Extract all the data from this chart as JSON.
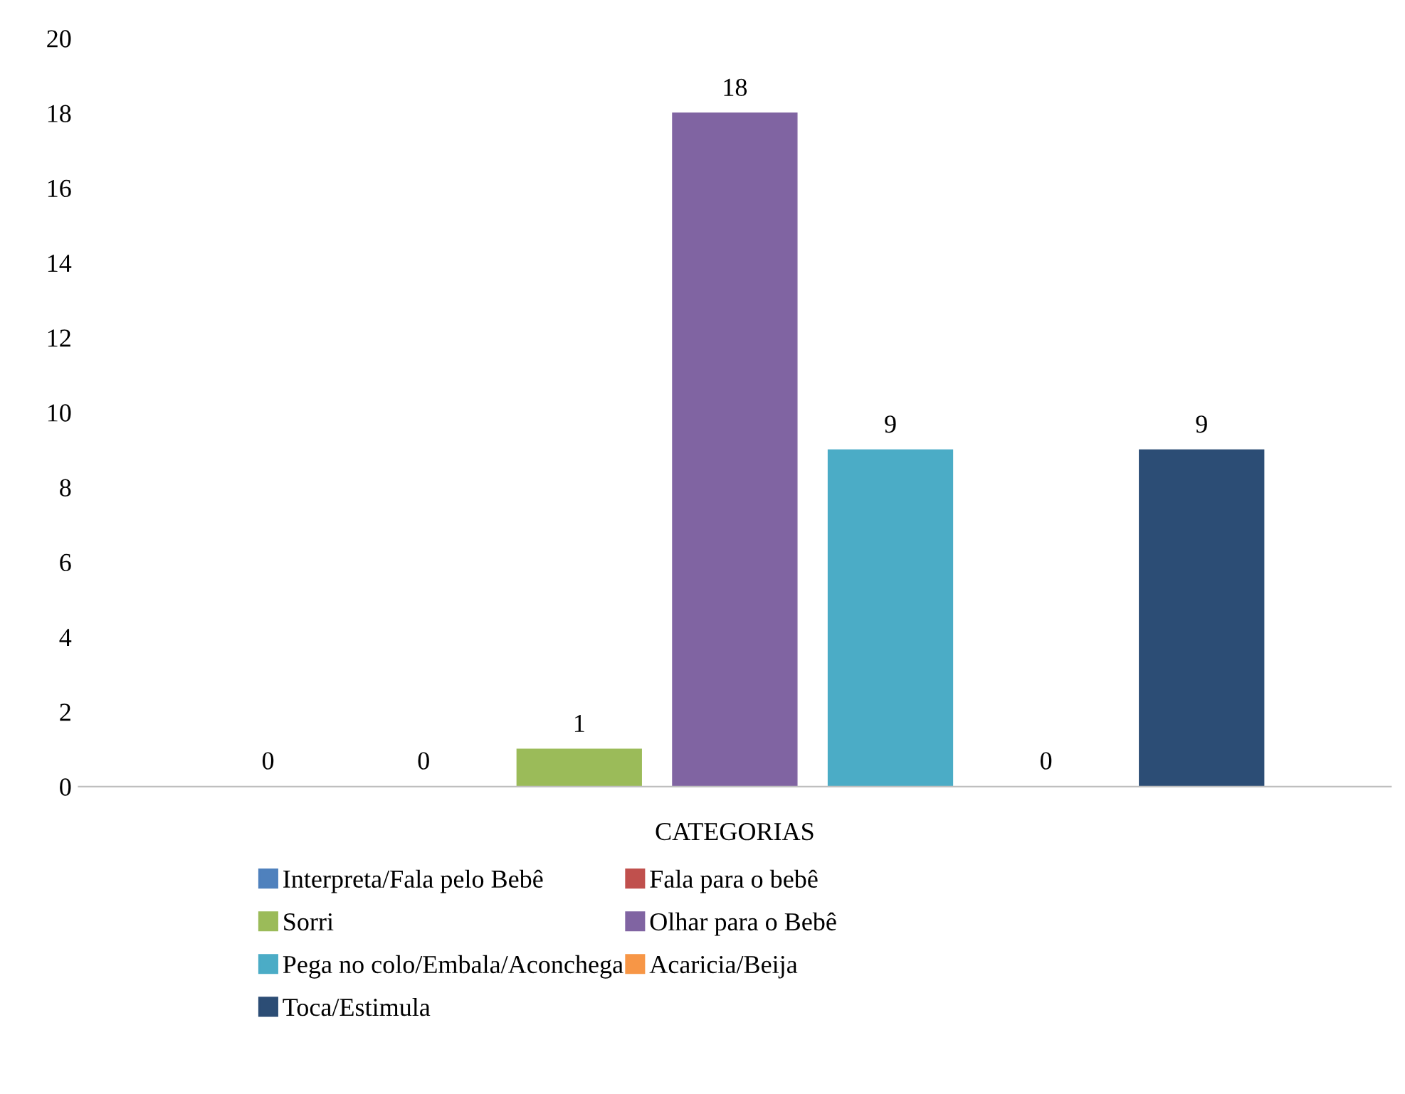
{
  "chart_data": {
    "type": "bar",
    "categories": [
      "CATEGORIAS"
    ],
    "series": [
      {
        "name": "Interpreta/Fala pelo Bebê",
        "color": "#4f81bd",
        "values": [
          0
        ]
      },
      {
        "name": "Fala para o bebê",
        "color": "#c0504d",
        "values": [
          0
        ]
      },
      {
        "name": "Sorri",
        "color": "#9bbb59",
        "values": [
          1
        ]
      },
      {
        "name": "Olhar para o Bebê",
        "color": "#8064a2",
        "values": [
          18
        ]
      },
      {
        "name": "Pega no colo/Embala/Aconchega",
        "color": "#4bacc6",
        "values": [
          9
        ]
      },
      {
        "name": "Acaricia/Beija",
        "color": "#f79646",
        "values": [
          0
        ]
      },
      {
        "name": "Toca/Estimula",
        "color": "#2c4d75",
        "values": [
          9
        ]
      }
    ],
    "ylim": [
      0,
      20
    ],
    "yticks": [
      0,
      2,
      4,
      6,
      8,
      10,
      12,
      14,
      16,
      18,
      20
    ],
    "grid": false,
    "legend": "bottom",
    "data_labels": true
  }
}
